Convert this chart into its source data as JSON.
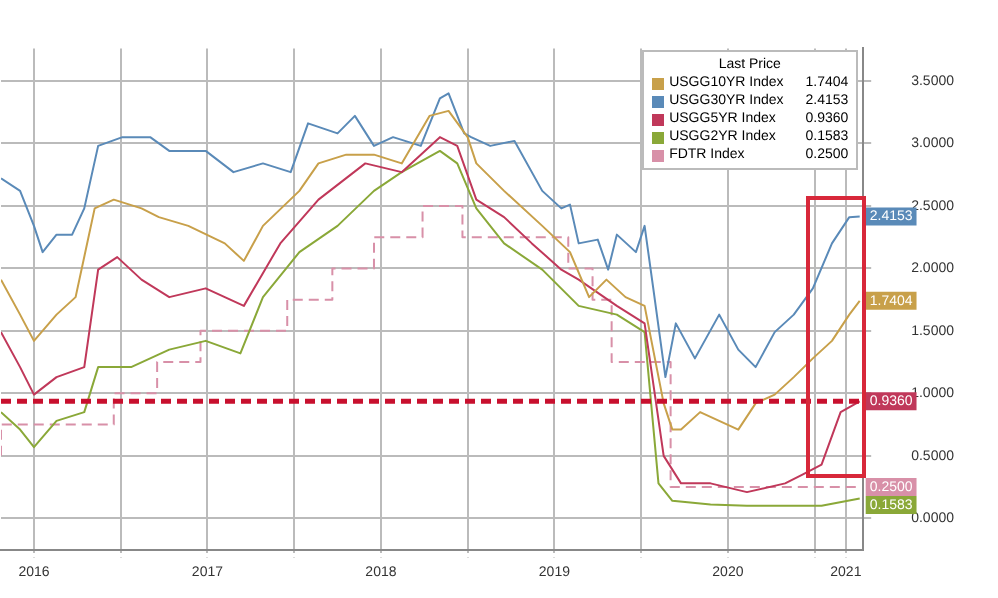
{
  "chart_data": {
    "type": "line",
    "legend_title": "Last Price",
    "legend": "top right",
    "grid": true,
    "marker": "none",
    "xlim": [
      2016.31,
      2021.28
    ],
    "xticks": [
      {
        "value": 2016.5,
        "label": "2016"
      },
      {
        "value": 2017,
        "label": null
      },
      {
        "value": 2017.5,
        "label": "2017"
      },
      {
        "value": 2018,
        "label": null
      },
      {
        "value": 2018.5,
        "label": "2018"
      },
      {
        "value": 2019,
        "label": null
      },
      {
        "value": 2019.5,
        "label": "2019"
      },
      {
        "value": 2020,
        "label": null
      },
      {
        "value": 2020.5,
        "label": "2020"
      },
      {
        "value": 2021,
        "label": null
      },
      {
        "value": 2021.18,
        "label": "2021"
      }
    ],
    "ylim": [
      -0.25,
      3.76
    ],
    "yticks": [
      {
        "value": 0,
        "label": "0.0000"
      },
      {
        "value": 0.5,
        "label": "0.5000"
      },
      {
        "value": 1,
        "label": "1.0000"
      },
      {
        "value": 1.5,
        "label": "1.5000"
      },
      {
        "value": 2,
        "label": "2.0000"
      },
      {
        "value": 2.5,
        "label": "2.5000"
      },
      {
        "value": 3,
        "label": "3.0000"
      },
      {
        "value": 3.5,
        "label": "3.5000"
      }
    ],
    "ref_lines": [
      {
        "axis": "y",
        "value": 0.936,
        "color": "#c8102e",
        "line_style": "dashed"
      }
    ],
    "series": [
      {
        "name": "USGG10YR Index",
        "color": "#c8a04a",
        "x": [
          2016.31,
          2016.42,
          2016.5,
          2016.63,
          2016.74,
          2016.85,
          2016.96,
          2017.12,
          2017.22,
          2017.39,
          2017.6,
          2017.71,
          2017.82,
          2018.03,
          2018.14,
          2018.3,
          2018.46,
          2018.62,
          2018.78,
          2018.89,
          2019.0,
          2019.05,
          2019.21,
          2019.43,
          2019.59,
          2019.7,
          2019.8,
          2019.91,
          2020.02,
          2020.13,
          2020.18,
          2020.23,
          2020.34,
          2020.45,
          2020.56,
          2020.66,
          2020.77,
          2020.88,
          2020.99,
          2021.1,
          2021.2,
          2021.26
        ],
        "values": [
          1.91,
          1.63,
          1.42,
          1.63,
          1.77,
          2.48,
          2.55,
          2.48,
          2.41,
          2.34,
          2.2,
          2.06,
          2.34,
          2.62,
          2.84,
          2.91,
          2.91,
          2.84,
          3.22,
          3.26,
          3.05,
          2.84,
          2.62,
          2.34,
          2.13,
          1.77,
          1.91,
          1.77,
          1.7,
          0.92,
          0.71,
          0.71,
          0.85,
          0.78,
          0.71,
          0.92,
          0.99,
          1.13,
          1.28,
          1.42,
          1.63,
          1.7404
        ],
        "value_labels": [
          null,
          null,
          null,
          null,
          null,
          null,
          null,
          null,
          null,
          null,
          null,
          null,
          null,
          null,
          null,
          null,
          null,
          null,
          null,
          null,
          null,
          null,
          null,
          null,
          null,
          null,
          null,
          null,
          null,
          null,
          null,
          null,
          null,
          null,
          null,
          null,
          null,
          null,
          null,
          null,
          null,
          "1.7404"
        ]
      },
      {
        "name": "USGG30YR Index",
        "color": "#5a8ab8",
        "x": [
          2016.31,
          2016.42,
          2016.5,
          2016.55,
          2016.63,
          2016.72,
          2016.79,
          2016.87,
          2017.01,
          2017.17,
          2017.28,
          2017.49,
          2017.65,
          2017.82,
          2017.98,
          2018.08,
          2018.25,
          2018.35,
          2018.46,
          2018.57,
          2018.73,
          2018.84,
          2018.89,
          2018.98,
          2019.02,
          2019.13,
          2019.27,
          2019.43,
          2019.54,
          2019.59,
          2019.64,
          2019.75,
          2019.81,
          2019.86,
          2019.97,
          2020.02,
          2020.07,
          2020.14,
          2020.2,
          2020.31,
          2020.45,
          2020.56,
          2020.66,
          2020.77,
          2020.88,
          2020.99,
          2021.1,
          2021.2,
          2021.26
        ],
        "values": [
          2.72,
          2.62,
          2.34,
          2.13,
          2.27,
          2.27,
          2.48,
          2.98,
          3.05,
          3.05,
          2.94,
          2.94,
          2.77,
          2.84,
          2.77,
          3.16,
          3.08,
          3.22,
          2.98,
          3.05,
          2.98,
          3.36,
          3.4,
          3.08,
          3.05,
          2.98,
          3.02,
          2.62,
          2.48,
          2.51,
          2.2,
          2.23,
          1.99,
          2.27,
          2.13,
          2.34,
          1.84,
          1.13,
          1.56,
          1.28,
          1.63,
          1.35,
          1.21,
          1.49,
          1.63,
          1.84,
          2.2,
          2.41,
          2.4153
        ],
        "value_labels": [
          null,
          null,
          null,
          null,
          null,
          null,
          null,
          null,
          null,
          null,
          null,
          null,
          null,
          null,
          null,
          null,
          null,
          null,
          null,
          null,
          null,
          null,
          null,
          null,
          null,
          null,
          null,
          null,
          null,
          null,
          null,
          null,
          null,
          null,
          null,
          null,
          null,
          null,
          null,
          null,
          null,
          null,
          null,
          null,
          null,
          null,
          null,
          null,
          "2.4153"
        ]
      },
      {
        "name": "USGG5YR Index",
        "color": "#c0385a",
        "x": [
          2016.31,
          2016.42,
          2016.5,
          2016.63,
          2016.79,
          2016.87,
          2016.98,
          2017.12,
          2017.28,
          2017.49,
          2017.71,
          2017.92,
          2018.14,
          2018.41,
          2018.62,
          2018.84,
          2018.94,
          2019.05,
          2019.21,
          2019.37,
          2019.54,
          2019.64,
          2019.86,
          2020.02,
          2020.13,
          2020.23,
          2020.4,
          2020.61,
          2020.83,
          2020.93,
          2021.04,
          2021.15,
          2021.26
        ],
        "values": [
          1.49,
          1.21,
          0.99,
          1.13,
          1.21,
          1.99,
          2.09,
          1.91,
          1.77,
          1.84,
          1.7,
          2.2,
          2.55,
          2.84,
          2.77,
          3.05,
          2.98,
          2.55,
          2.41,
          2.2,
          1.99,
          1.91,
          1.7,
          1.56,
          0.5,
          0.28,
          0.28,
          0.21,
          0.28,
          0.35,
          0.43,
          0.85,
          0.936
        ],
        "value_labels": [
          null,
          null,
          null,
          null,
          null,
          null,
          null,
          null,
          null,
          null,
          null,
          null,
          null,
          null,
          null,
          null,
          null,
          null,
          null,
          null,
          null,
          null,
          null,
          null,
          null,
          null,
          null,
          null,
          null,
          null,
          null,
          null,
          "0.9360"
        ]
      },
      {
        "name": "USGG2YR Index",
        "color": "#8aa838",
        "x": [
          2016.31,
          2016.42,
          2016.5,
          2016.63,
          2016.79,
          2016.87,
          2017.06,
          2017.28,
          2017.49,
          2017.69,
          2017.82,
          2018.03,
          2018.25,
          2018.46,
          2018.62,
          2018.84,
          2018.94,
          2019.05,
          2019.21,
          2019.43,
          2019.64,
          2019.86,
          2020.02,
          2020.1,
          2020.18,
          2020.4,
          2020.61,
          2020.83,
          2021.04,
          2021.26
        ],
        "values": [
          0.85,
          0.71,
          0.57,
          0.78,
          0.85,
          1.21,
          1.21,
          1.35,
          1.42,
          1.32,
          1.77,
          2.13,
          2.34,
          2.62,
          2.77,
          2.94,
          2.84,
          2.48,
          2.2,
          1.99,
          1.7,
          1.63,
          1.49,
          0.28,
          0.14,
          0.11,
          0.1,
          0.1,
          0.1,
          0.1583
        ],
        "value_labels": [
          null,
          null,
          null,
          null,
          null,
          null,
          null,
          null,
          null,
          null,
          null,
          null,
          null,
          null,
          null,
          null,
          null,
          null,
          null,
          null,
          null,
          null,
          null,
          null,
          null,
          null,
          null,
          null,
          null,
          "0.1583"
        ]
      },
      {
        "name": "FDTR Index",
        "type": "step",
        "line_style": "dashed",
        "color": "#d890a8",
        "x": [
          2016.31,
          2016.96,
          2017.21,
          2017.46,
          2017.96,
          2018.22,
          2018.46,
          2018.74,
          2018.97,
          2019.58,
          2019.72,
          2019.83,
          2020.17,
          2020.21,
          2021.26
        ],
        "values": [
          0.5,
          0.75,
          1.0,
          1.25,
          1.5,
          1.75,
          2.0,
          2.25,
          2.5,
          2.25,
          2.0,
          1.75,
          1.25,
          0.25,
          0.25
        ],
        "value_labels": [
          null,
          null,
          null,
          null,
          null,
          null,
          null,
          null,
          null,
          null,
          null,
          null,
          null,
          null,
          "0.2500"
        ]
      }
    ]
  }
}
